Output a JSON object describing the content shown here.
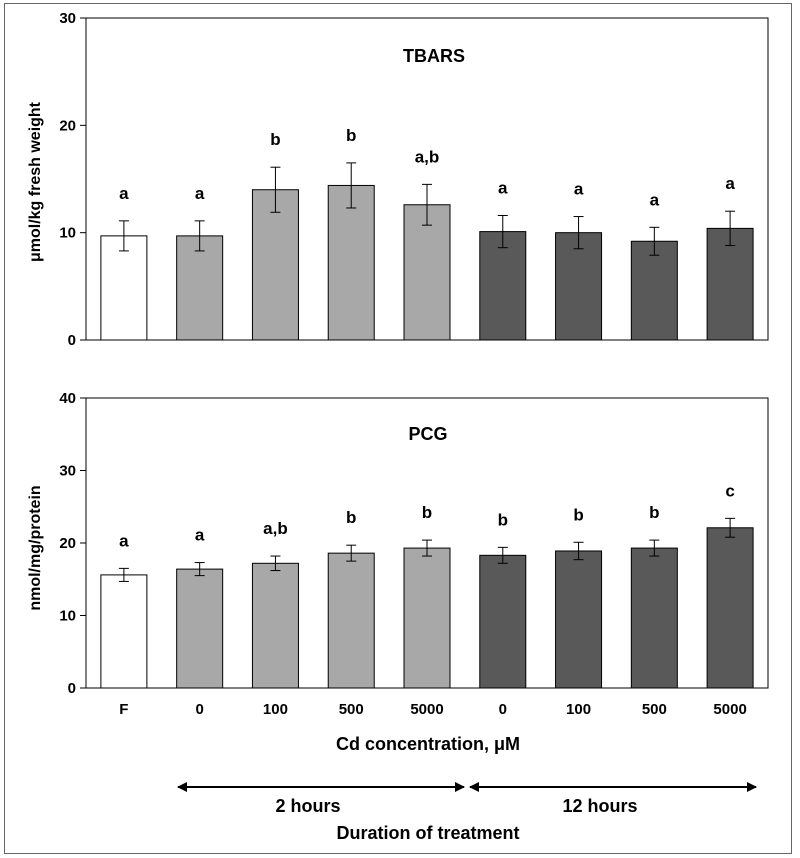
{
  "chart_data": [
    {
      "type": "bar",
      "title": "TBARS",
      "ylabel": "μmol/kg fresh weight",
      "xlabel": "",
      "ylim": [
        0,
        30
      ],
      "yticks": [
        0,
        10,
        20,
        30
      ],
      "categories": [
        "F",
        "0",
        "100",
        "500",
        "5000",
        "0",
        "100",
        "500",
        "5000"
      ],
      "values": [
        9.7,
        9.7,
        14.0,
        14.4,
        12.6,
        10.1,
        10.0,
        9.2,
        10.4
      ],
      "errors": [
        1.4,
        1.4,
        2.1,
        2.1,
        1.9,
        1.5,
        1.5,
        1.3,
        1.6
      ],
      "letters": [
        "a",
        "a",
        "b",
        "b",
        "a,b",
        "a",
        "a",
        "a",
        "a"
      ],
      "bar_colors": [
        "#ffffff",
        "#a8a8a8",
        "#a8a8a8",
        "#a8a8a8",
        "#a8a8a8",
        "#595959",
        "#595959",
        "#595959",
        "#595959"
      ],
      "grid": false
    },
    {
      "type": "bar",
      "title": "PCG",
      "ylabel": "nmol/mg/protein",
      "xlabel": "Cd concentration, μM",
      "ylim": [
        0,
        40
      ],
      "yticks": [
        0,
        10,
        20,
        30,
        40
      ],
      "categories": [
        "F",
        "0",
        "100",
        "500",
        "5000",
        "0",
        "100",
        "500",
        "5000"
      ],
      "values": [
        15.6,
        16.4,
        17.2,
        18.6,
        19.3,
        18.3,
        18.9,
        19.3,
        22.1
      ],
      "errors": [
        0.9,
        0.9,
        1.0,
        1.1,
        1.1,
        1.1,
        1.2,
        1.1,
        1.3
      ],
      "letters": [
        "a",
        "a",
        "a,b",
        "b",
        "b",
        "b",
        "b",
        "b",
        "c"
      ],
      "bar_colors": [
        "#ffffff",
        "#a8a8a8",
        "#a8a8a8",
        "#a8a8a8",
        "#a8a8a8",
        "#595959",
        "#595959",
        "#595959",
        "#595959"
      ],
      "grid": false
    }
  ],
  "duration": {
    "groups": [
      {
        "label": "2 hours",
        "from_category": 1,
        "to_category": 4
      },
      {
        "label": "12 hours",
        "from_category": 5,
        "to_category": 8
      }
    ],
    "title": "Duration of treatment"
  }
}
